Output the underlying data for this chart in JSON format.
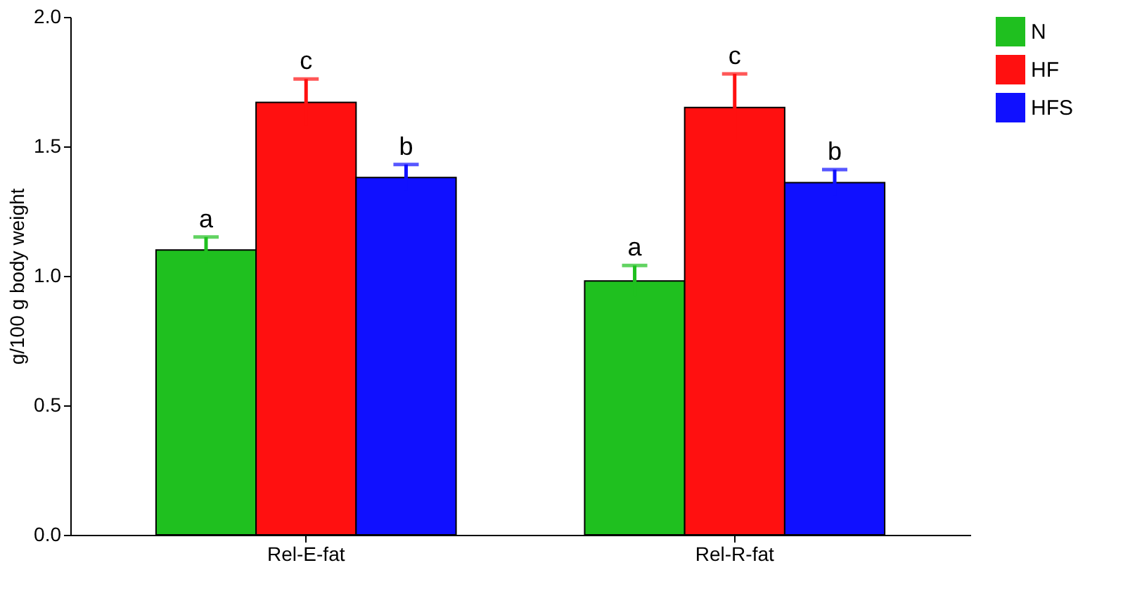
{
  "chart_data": {
    "type": "bar",
    "ylabel": "g/100 g body weight",
    "categories": [
      "Rel-E-fat",
      "Rel-R-fat"
    ],
    "series": [
      {
        "name": "N",
        "color": "#1fc01f",
        "values": [
          1.1,
          0.98
        ],
        "errors": [
          0.05,
          0.06
        ]
      },
      {
        "name": "HF",
        "color": "#ff1010",
        "values": [
          1.67,
          1.65
        ],
        "errors": [
          0.09,
          0.13
        ]
      },
      {
        "name": "HFS",
        "color": "#1010ff",
        "values": [
          1.38,
          1.36
        ],
        "errors": [
          0.05,
          0.05
        ]
      }
    ],
    "ylim": [
      0,
      2.0
    ],
    "yticks": [
      {
        "value": 0,
        "label": "0.0"
      },
      {
        "value": 0.5,
        "label": "0.5"
      },
      {
        "value": 1.0,
        "label": "1.0"
      },
      {
        "value": 1.5,
        "label": "1.5"
      },
      {
        "value": 2.0,
        "label": "2.0"
      }
    ],
    "annotations": [
      "a",
      "c",
      "b",
      "a",
      "c",
      "b"
    ],
    "grid": false,
    "legend": "right"
  }
}
